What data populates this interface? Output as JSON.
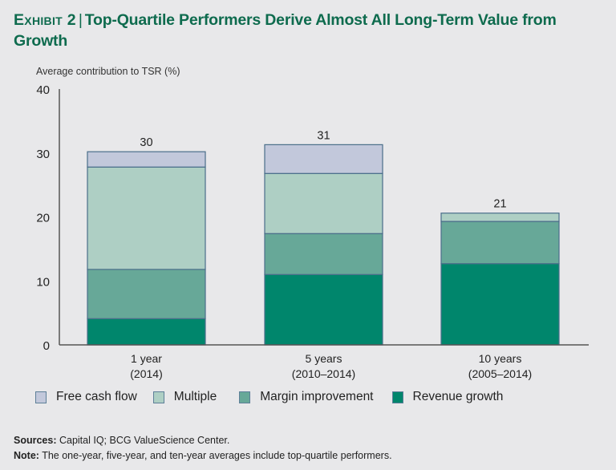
{
  "header": {
    "exhibit_label": "Exhibit 2",
    "separator": "|",
    "title": "Top-Quartile Performers Derive Almost All Long-Term Value from Growth"
  },
  "chart_data": {
    "type": "bar",
    "stacked": true,
    "title": "Top-Quartile Performers Derive Almost All Long-Term Value from Growth",
    "ylabel": "Average contribution to TSR (%)",
    "xlabel": "",
    "ylim": [
      0,
      40
    ],
    "yticks": [
      0,
      10,
      20,
      30,
      40
    ],
    "grid": false,
    "categories": [
      {
        "line1": "1 year",
        "line2": "(2014)"
      },
      {
        "line1": "5 years",
        "line2": "(2010–2014)"
      },
      {
        "line1": "10 years",
        "line2": "(2005–2014)"
      }
    ],
    "totals": [
      30,
      31,
      21
    ],
    "series": [
      {
        "name": "Revenue growth",
        "color": "#00866c",
        "values": [
          4.1,
          11.0,
          12.7
        ]
      },
      {
        "name": "Margin improvement",
        "color": "#67a898",
        "values": [
          7.7,
          6.4,
          6.6
        ]
      },
      {
        "name": "Multiple",
        "color": "#aecfc4",
        "values": [
          16.0,
          9.4,
          1.3
        ]
      },
      {
        "name": "Free cash flow",
        "color": "#c2c8db",
        "values": [
          2.4,
          4.5,
          0.0
        ]
      }
    ],
    "legend_order": [
      "Free cash flow",
      "Multiple",
      "Margin improvement",
      "Revenue growth"
    ],
    "legend_position": "bottom"
  },
  "footer": {
    "sources_label": "Sources:",
    "sources_text": " Capital IQ; BCG ValueScience Center.",
    "note_label": "Note:",
    "note_text": " The one-year, five-year, and ten-year averages include top-quartile performers."
  }
}
